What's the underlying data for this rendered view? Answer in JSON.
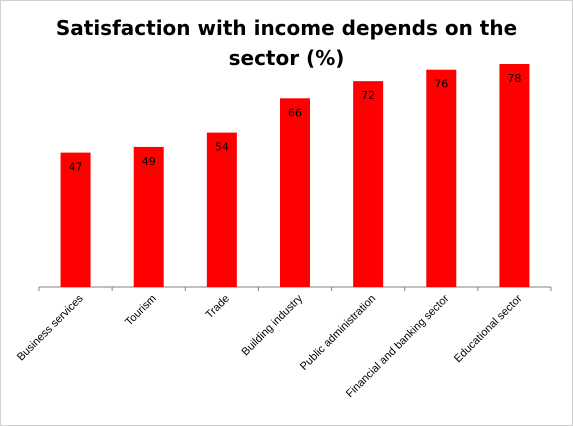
{
  "chart_data": {
    "type": "bar",
    "title_lines": [
      "Satisfaction with income depends on the",
      "sector (%)"
    ],
    "categories": [
      "Business services",
      "Tourism",
      "Trade",
      "Building industry",
      "Public administration",
      "Financial and banking sector",
      "Educational sector"
    ],
    "values": [
      47,
      49,
      54,
      66,
      72,
      76,
      78
    ],
    "ylim": [
      0,
      100
    ],
    "grid": false,
    "legend": "none",
    "bar_color": "#ff0000"
  }
}
